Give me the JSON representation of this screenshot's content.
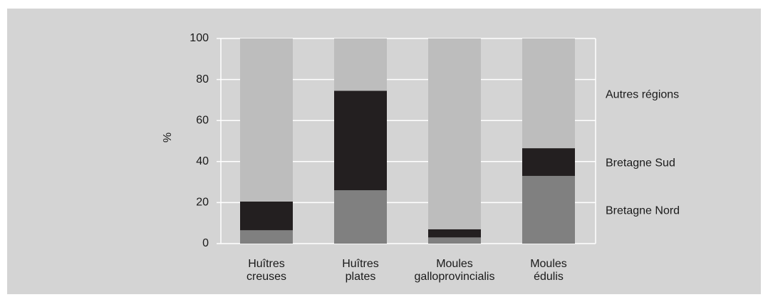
{
  "chart_data": {
    "type": "stacked_bar",
    "y_label": "%",
    "categories": [
      "Huîtres creuses",
      "Huîtres plates",
      "Moules galloprovincialis",
      "Moules édulis"
    ],
    "series": [
      {
        "name": "Bretagne Nord",
        "color": "#808080",
        "values": [
          6.5,
          26,
          3,
          33
        ]
      },
      {
        "name": "Bretagne Sud",
        "color": "#231f20",
        "values": [
          14,
          48.5,
          4,
          13.5
        ]
      },
      {
        "name": "Autres régions",
        "color": "#bdbdbd",
        "values": [
          79.5,
          25.5,
          93,
          53.5
        ]
      }
    ],
    "ylim": [
      0,
      100
    ],
    "yticks": [
      0,
      20,
      40,
      60,
      80,
      100
    ],
    "grid": true
  }
}
